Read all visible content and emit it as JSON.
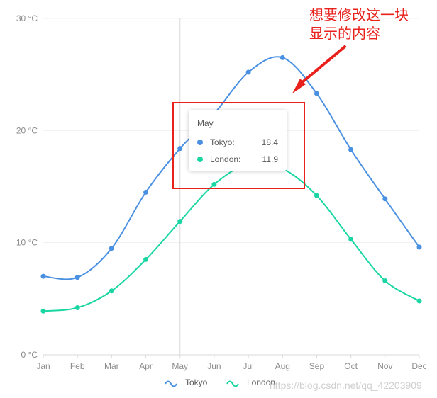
{
  "chart_data": {
    "type": "line",
    "categories": [
      "Jan",
      "Feb",
      "Mar",
      "Apr",
      "May",
      "Jun",
      "Jul",
      "Aug",
      "Sep",
      "Oct",
      "Nov",
      "Dec"
    ],
    "series": [
      {
        "name": "Tokyo",
        "color": "#4a90e2",
        "values": [
          7.0,
          6.9,
          9.5,
          14.5,
          18.4,
          21.5,
          25.2,
          26.5,
          23.3,
          18.3,
          13.9,
          9.6
        ]
      },
      {
        "name": "London",
        "color": "#1ad6a3",
        "values": [
          3.9,
          4.2,
          5.7,
          8.5,
          11.9,
          15.2,
          17.0,
          16.6,
          14.2,
          10.3,
          6.6,
          4.8
        ]
      }
    ],
    "ylim": [
      0,
      30
    ],
    "yticks": [
      "0 °C",
      "10 °C",
      "20 °C",
      "30 °C"
    ],
    "grid": true,
    "legend_position": "bottom",
    "crosshair_category": "May"
  },
  "tooltip": {
    "title": "May",
    "rows": [
      {
        "name": "Tokyo:",
        "value": "18.4",
        "color": "#4a90e2"
      },
      {
        "name": "London:",
        "value": "11.9",
        "color": "#1ad6a3"
      }
    ]
  },
  "annotation": {
    "line1": "想要修改这一块",
    "line2": "显示的内容",
    "color": "#e8211c"
  },
  "watermark": "https://blog.csdn.net/qq_42203909"
}
